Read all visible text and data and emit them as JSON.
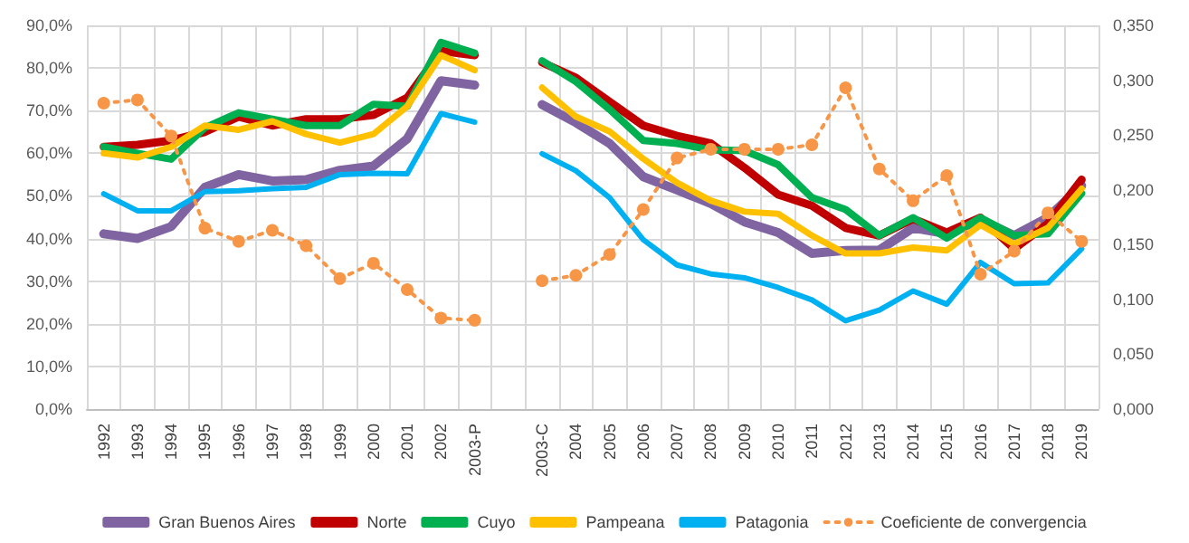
{
  "chart_data": {
    "type": "line",
    "categories": [
      "1992",
      "1993",
      "1994",
      "1995",
      "1996",
      "1997",
      "1998",
      "1999",
      "2000",
      "2001",
      "2002",
      "2003-P",
      null,
      "2003-C",
      "2004",
      "2005",
      "2006",
      "2007",
      "2008",
      "2009",
      "2010",
      "2011",
      "2012",
      "2013",
      "2014",
      "2015",
      "2016",
      "2017",
      "2018",
      "2019"
    ],
    "series": [
      {
        "name": "Gran Buenos Aires",
        "color": "#8064a2",
        "values": [
          41.1,
          40.0,
          42.8,
          52,
          55,
          53.5,
          53.8,
          56,
          57,
          63.4,
          77,
          76,
          null,
          71.4,
          67.2,
          62.3,
          54.5,
          51.4,
          48.2,
          43.9,
          41.4,
          36.5,
          37.2,
          37.3,
          42.5,
          41.1,
          44.4,
          40.7,
          44.9,
          52.4
        ]
      },
      {
        "name": "Norte",
        "color": "#c00000",
        "values": [
          61.5,
          62,
          63,
          65,
          68.6,
          66.5,
          68,
          68,
          69,
          73,
          84,
          83,
          null,
          81.3,
          77.7,
          72.1,
          66.5,
          64.1,
          62.3,
          56.6,
          50.3,
          47.7,
          42.5,
          40.7,
          44.6,
          41.4,
          44.9,
          37.6,
          43.5,
          53.8
        ]
      },
      {
        "name": "Cuyo",
        "color": "#00b050",
        "values": [
          61.5,
          60,
          58.6,
          66,
          69.5,
          68,
          66.5,
          66.5,
          71.5,
          71,
          86,
          83.5,
          null,
          81.7,
          76.8,
          70.3,
          63,
          62.3,
          60.8,
          60.6,
          57.3,
          49.6,
          46.8,
          40.7,
          44.9,
          40.1,
          44.9,
          40.7,
          41.1,
          50.6
        ]
      },
      {
        "name": "Pampeana",
        "color": "#ffc000",
        "values": [
          60,
          59,
          61.5,
          66.5,
          65.5,
          67.5,
          64.5,
          62.5,
          64.5,
          71,
          83,
          79.5,
          null,
          75.4,
          68.6,
          65.1,
          58.7,
          53.1,
          48.9,
          46.3,
          45.8,
          40.7,
          36.5,
          36.5,
          37.9,
          37.2,
          43.2,
          38.7,
          42.5,
          51.7
        ]
      },
      {
        "name": "Patagonia",
        "color": "#00b0f0",
        "values": [
          50.5,
          46.5,
          46.5,
          51,
          51.2,
          51.7,
          52,
          55,
          55.3,
          55.2,
          69.3,
          67.3,
          null,
          59.9,
          55.9,
          49.6,
          39.7,
          33.8,
          31.7,
          30.8,
          28.5,
          25.6,
          20.7,
          23.2,
          27.7,
          24.6,
          34.4,
          29.4,
          29.6,
          37.6
        ]
      },
      {
        "name": "Coeficiente de convergencia",
        "color": "#f79646",
        "axis": "y2",
        "marker": "circle",
        "line_style": "dotted",
        "values": [
          0.279,
          0.282,
          0.249,
          0.165,
          0.153,
          0.163,
          0.149,
          0.119,
          0.133,
          0.109,
          0.083,
          0.081,
          null,
          0.117,
          0.122,
          0.141,
          0.182,
          0.229,
          0.237,
          0.237,
          0.237,
          0.241,
          0.293,
          0.219,
          0.19,
          0.213,
          0.123,
          0.144,
          0.179,
          0.153
        ]
      }
    ],
    "ylim": [
      0,
      90
    ],
    "yticks": [
      {
        "value": 0,
        "label": "0,0%"
      },
      {
        "value": 10,
        "label": "10,0%"
      },
      {
        "value": 20,
        "label": "20,0%"
      },
      {
        "value": 30,
        "label": "30,0%"
      },
      {
        "value": 40,
        "label": "40,0%"
      },
      {
        "value": 50,
        "label": "50,0%"
      },
      {
        "value": 60,
        "label": "60,0%"
      },
      {
        "value": 70,
        "label": "70,0%"
      },
      {
        "value": 80,
        "label": "80,0%"
      },
      {
        "value": 90,
        "label": "90,0%"
      }
    ],
    "y2lim": [
      0,
      0.35
    ],
    "y2ticks": [
      {
        "value": 0,
        "label": "0,000"
      },
      {
        "value": 0.05,
        "label": "0,050"
      },
      {
        "value": 0.1,
        "label": "0,100"
      },
      {
        "value": 0.15,
        "label": "0,150"
      },
      {
        "value": 0.2,
        "label": "0,200"
      },
      {
        "value": 0.25,
        "label": "0,250"
      },
      {
        "value": 0.3,
        "label": "0,300"
      },
      {
        "value": 0.35,
        "label": "0,350"
      }
    ],
    "grid": true,
    "legend": "bottom",
    "marker": "none",
    "line_style": "solid"
  }
}
